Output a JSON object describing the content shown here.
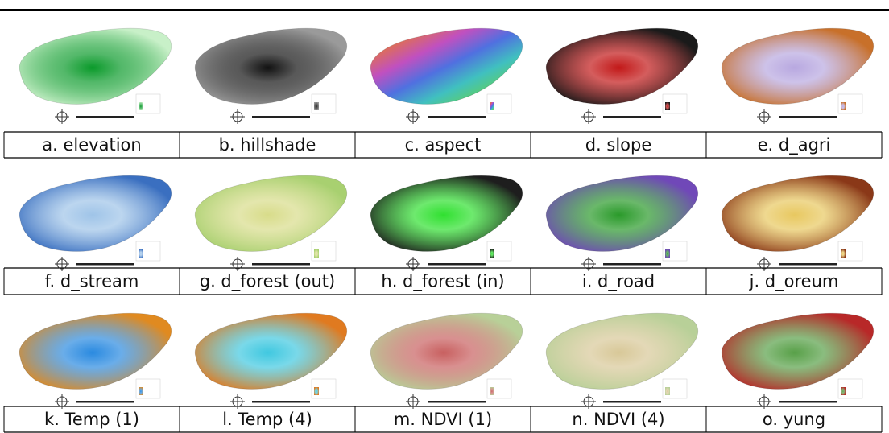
{
  "figure": {
    "captions": [
      "a. elevation",
      "b. hillshade",
      "c. aspect",
      "d. slope",
      "e. d_agri",
      "f. d_stream",
      "g. d_forest (out)",
      "h. d_forest (in)",
      "i. d_road",
      "j. d_oreum",
      "k. Temp (1)",
      "l. Temp (4)",
      "m. NDVI (1)",
      "n. NDVI (4)",
      "o. yung"
    ]
  }
}
